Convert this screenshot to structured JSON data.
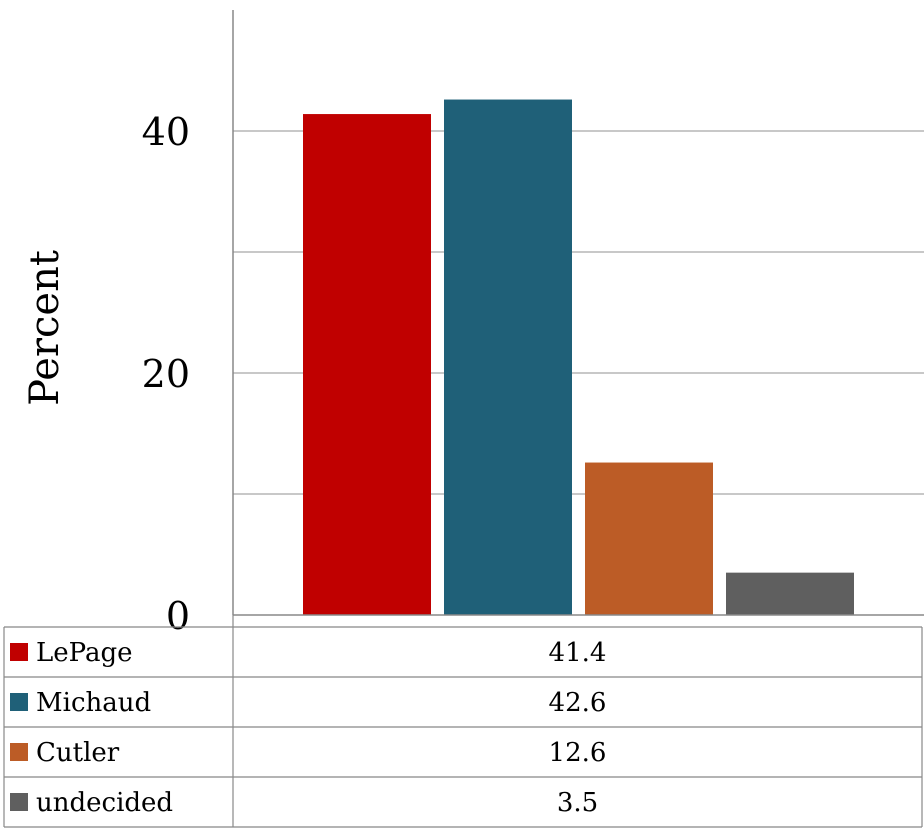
{
  "chart_data": {
    "type": "bar",
    "title": "",
    "xlabel": "",
    "ylabel": "Percent",
    "ylim": [
      0,
      50
    ],
    "yticks": [
      0,
      20,
      40
    ],
    "grid": true,
    "legend": "data-table-below",
    "categories": [
      "LePage",
      "Michaud",
      "Cutler",
      "undecided"
    ],
    "values": [
      41.4,
      42.6,
      12.6,
      3.5
    ],
    "value_labels": [
      "41.4",
      "42.6",
      "12.6",
      "3.5"
    ],
    "colors": [
      "#c00000",
      "#1f6078",
      "#bc5c26",
      "#5f5f5f"
    ]
  }
}
